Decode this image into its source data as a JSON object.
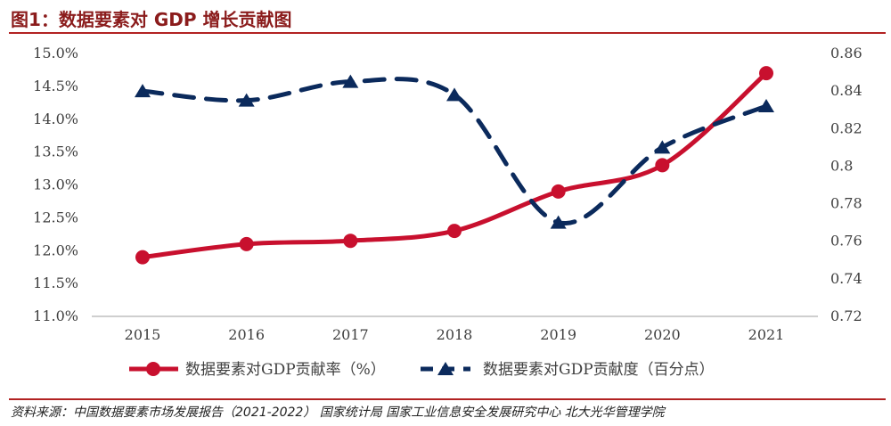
{
  "figure_title": "图1：数据要素对 GDP 增长贡献图",
  "source": "资料来源：中国数据要素市场发展报告（2021-2022） 国家统计局 国家工业信息安全发展研究中心 北大光华管理学院",
  "colors": {
    "accent": "#b22222",
    "rate_series": "#c8102e",
    "degree_series": "#0b2a5c",
    "axis": "#bfbfbf",
    "text": "#404040"
  },
  "chart_data": {
    "type": "line",
    "x": [
      "2015",
      "2016",
      "2017",
      "2018",
      "2019",
      "2020",
      "2021"
    ],
    "y_left": {
      "ticks": [
        "15.0%",
        "14.5%",
        "14.0%",
        "13.5%",
        "13.0%",
        "12.5%",
        "12.0%",
        "11.5%",
        "11.0%"
      ],
      "ylim": [
        11.0,
        15.0
      ]
    },
    "y_right": {
      "ticks": [
        "0.86",
        "0.84",
        "0.82",
        "0.8",
        "0.78",
        "0.76",
        "0.74",
        "0.72"
      ],
      "ylim": [
        0.72,
        0.86
      ]
    },
    "series": [
      {
        "name": "数据要素对GDP贡献率（%）",
        "axis": "left",
        "style": "solid",
        "marker": "circle",
        "values": [
          11.9,
          12.1,
          12.15,
          12.3,
          12.9,
          13.3,
          14.7
        ]
      },
      {
        "name": "数据要素对GDP贡献度（百分点）",
        "axis": "right",
        "style": "dashed",
        "marker": "triangle",
        "values": [
          0.84,
          0.835,
          0.845,
          0.838,
          0.77,
          0.81,
          0.832
        ]
      }
    ],
    "legend_position": "bottom",
    "grid": false
  }
}
